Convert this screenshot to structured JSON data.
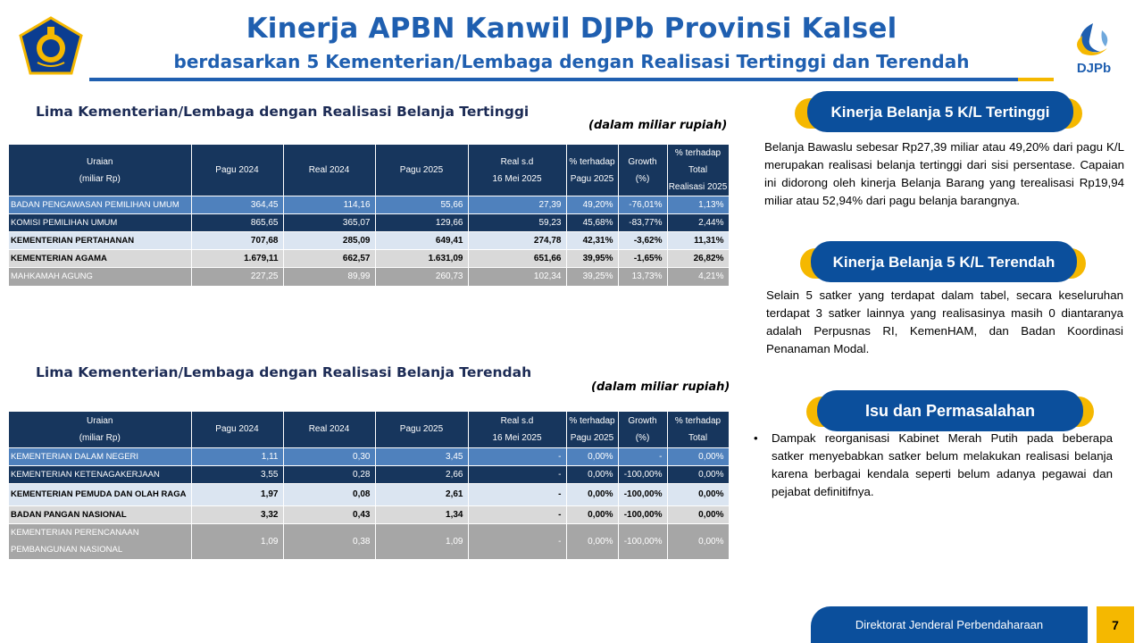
{
  "header": {
    "title": "Kinerja APBN Kanwil DJPb Provinsi Kalsel",
    "subtitle": "berdasarkan 5 Kementerian/Lembaga dengan Realisasi Tertinggi dan Terendah",
    "logo_right_text": "DJPb"
  },
  "colors": {
    "brand_blue": "#1f5fb0",
    "navy": "#17365d",
    "gold": "#f5b800",
    "pill_blue": "#0b4f9c"
  },
  "top_section": {
    "title": "Lima Kementerian/Lembaga dengan Realisasi Belanja Tertinggi",
    "unit": "(dalam miliar rupiah)",
    "headers": {
      "uraian": [
        "Uraian",
        "(miliar Rp)"
      ],
      "pagu_2024": "Pagu 2024",
      "real_2024": "Real 2024",
      "pagu_2025": "Pagu 2025",
      "real_sd": [
        "Real s.d",
        "16 Mei 2025"
      ],
      "pct_pagu": [
        "% terhadap",
        "Pagu 2025"
      ],
      "growth": [
        "Growth",
        "(%)"
      ],
      "pct_total": [
        "% terhadap",
        "Total",
        "Realisasi 2025"
      ]
    },
    "rows": [
      {
        "name": "BADAN PENGAWASAN PEMILIHAN UMUM",
        "pagu_2024": "364,45",
        "real_2024": "114,16",
        "pagu_2025": "55,66",
        "real_sd": "27,39",
        "pct_pagu": "49,20%",
        "growth": "-76,01%",
        "pct_total": "1,13%"
      },
      {
        "name": "KOMISI PEMILIHAN UMUM",
        "pagu_2024": "865,65",
        "real_2024": "365,07",
        "pagu_2025": "129,66",
        "real_sd": "59,23",
        "pct_pagu": "45,68%",
        "growth": "-83,77%",
        "pct_total": "2,44%"
      },
      {
        "name": "KEMENTERIAN PERTAHANAN",
        "pagu_2024": "707,68",
        "real_2024": "285,09",
        "pagu_2025": "649,41",
        "real_sd": "274,78",
        "pct_pagu": "42,31%",
        "growth": "-3,62%",
        "pct_total": "11,31%"
      },
      {
        "name": "KEMENTERIAN AGAMA",
        "pagu_2024": "1.679,11",
        "real_2024": "662,57",
        "pagu_2025": "1.631,09",
        "real_sd": "651,66",
        "pct_pagu": "39,95%",
        "growth": "-1,65%",
        "pct_total": "26,82%"
      },
      {
        "name": "MAHKAMAH AGUNG",
        "pagu_2024": "227,25",
        "real_2024": "89,99",
        "pagu_2025": "260,73",
        "real_sd": "102,34",
        "pct_pagu": "39,25%",
        "growth": "13,73%",
        "pct_total": "4,21%"
      }
    ]
  },
  "bottom_section": {
    "title": "Lima Kementerian/Lembaga dengan Realisasi Belanja Terendah",
    "unit": "(dalam miliar rupiah)",
    "headers": {
      "uraian": [
        "Uraian",
        "(miliar Rp)"
      ],
      "pagu_2024": "Pagu 2024",
      "real_2024": "Real 2024",
      "pagu_2025": "Pagu 2025",
      "real_sd": [
        "Real s.d",
        "16 Mei 2025"
      ],
      "pct_pagu": [
        "% terhadap",
        "Pagu 2025"
      ],
      "growth": [
        "Growth",
        "(%)"
      ],
      "pct_total": [
        "% terhadap",
        "Total"
      ]
    },
    "rows": [
      {
        "name": "KEMENTERIAN DALAM NEGERI",
        "pagu_2024": "1,11",
        "real_2024": "0,30",
        "pagu_2025": "3,45",
        "real_sd": "-",
        "pct_pagu": "0,00%",
        "growth": "-",
        "pct_total": "0,00%"
      },
      {
        "name": "KEMENTERIAN KETENAGAKERJAAN",
        "pagu_2024": "3,55",
        "real_2024": "0,28",
        "pagu_2025": "2,66",
        "real_sd": "-",
        "pct_pagu": "0,00%",
        "growth": "-100,00%",
        "pct_total": "0,00%"
      },
      {
        "name": "KEMENTERIAN PEMUDA DAN OLAH RAGA",
        "pagu_2024": "1,97",
        "real_2024": "0,08",
        "pagu_2025": "2,61",
        "real_sd": "-",
        "pct_pagu": "0,00%",
        "growth": "-100,00%",
        "pct_total": "0,00%"
      },
      {
        "name": "BADAN PANGAN NASIONAL",
        "pagu_2024": "3,32",
        "real_2024": "0,43",
        "pagu_2025": "1,34",
        "real_sd": "-",
        "pct_pagu": "0,00%",
        "growth": "-100,00%",
        "pct_total": "0,00%"
      },
      {
        "name": "KEMENTERIAN PERENCANAAN PEMBANGUNAN NASIONAL",
        "pagu_2024": "1,09",
        "real_2024": "0,38",
        "pagu_2025": "1,09",
        "real_sd": "-",
        "pct_pagu": "0,00%",
        "growth": "-100,00%",
        "pct_total": "0,00%"
      }
    ]
  },
  "right_panel": {
    "top": {
      "heading": "Kinerja Belanja 5 K/L Tertinggi",
      "text": "Belanja Bawaslu sebesar Rp27,39 miliar atau 49,20% dari pagu K/L merupakan realisasi belanja tertinggi dari sisi persentase. Capaian ini didorong oleh kinerja Belanja Barang yang terealisasi Rp19,94 miliar atau 52,94% dari pagu belanja barangnya."
    },
    "middle": {
      "heading": "Kinerja Belanja 5 K/L Terendah",
      "text": "Selain 5 satker yang terdapat dalam tabel, secara keseluruhan terdapat 3 satker lainnya yang realisasinya masih 0 diantaranya adalah Perpusnas RI, KemenHAM, dan Badan Koordinasi Penanaman Modal."
    },
    "bottom": {
      "heading": "Isu dan Permasalahan",
      "bullet": "•",
      "text": "Dampak reorganisasi Kabinet Merah Putih pada beberapa satker menyebabkan satker belum melakukan realisasi belanja karena berbagai kendala seperti belum adanya pegawai dan pejabat definitifnya."
    }
  },
  "footer": {
    "org": "Direktorat Jenderal Perbendaharaan",
    "page_number": "7"
  }
}
